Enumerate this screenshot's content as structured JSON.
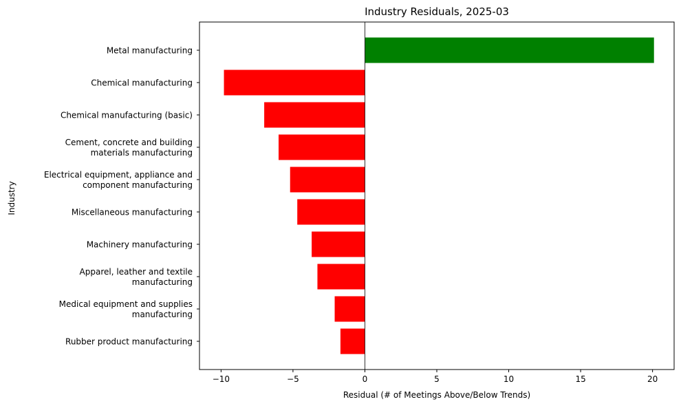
{
  "chart_data": {
    "type": "bar",
    "orientation": "horizontal",
    "title": "Industry Residuals, 2025-03",
    "xlabel": "Residual (# of Meetings Above/Below Trends)",
    "ylabel": "Industry",
    "xlim": [
      -11.5,
      21.5
    ],
    "xticks": [
      -10,
      -5,
      0,
      5,
      10,
      15,
      20
    ],
    "xtick_labels": [
      "−10",
      "−5",
      "0",
      "5",
      "10",
      "15",
      "20"
    ],
    "grid": false,
    "positive_color": "#008000",
    "negative_color": "#ff0000",
    "categories": [
      "Metal manufacturing",
      "Chemical manufacturing",
      "Chemical manufacturing (basic)",
      "Cement, concrete and building\nmaterials manufacturing",
      "Electrical equipment, appliance and\ncomponent manufacturing",
      "Miscellaneous manufacturing",
      "Machinery manufacturing",
      "Apparel, leather and textile\nmanufacturing",
      "Medical equipment and supplies\nmanufacturing",
      "Rubber product manufacturing"
    ],
    "values": [
      20.1,
      -9.8,
      -7.0,
      -6.0,
      -5.2,
      -4.7,
      -3.7,
      -3.3,
      -2.1,
      -1.7
    ]
  }
}
